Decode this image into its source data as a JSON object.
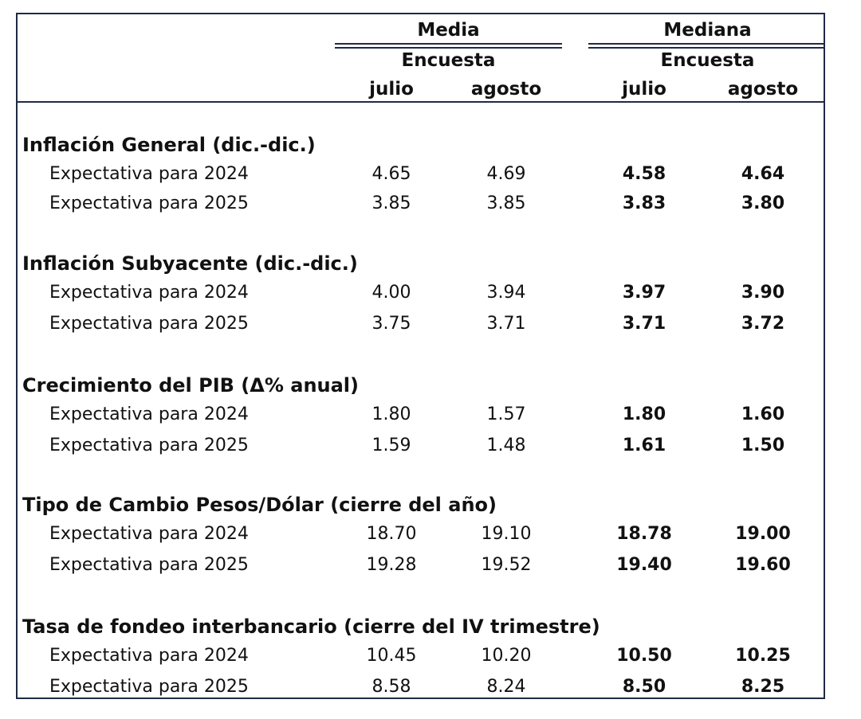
{
  "header": {
    "media_label": "Media",
    "mediana_label": "Mediana",
    "encuesta_label": "Encuesta",
    "month_1": "julio",
    "month_2": "agosto"
  },
  "sections": [
    {
      "title": "Inflación General (dic.-dic.)",
      "rows": [
        {
          "label": "Expectativa para 2024",
          "media_julio": "4.65",
          "media_agosto": "4.69",
          "mediana_julio": "4.58",
          "mediana_agosto": "4.64"
        },
        {
          "label": "Expectativa para 2025",
          "media_julio": "3.85",
          "media_agosto": "3.85",
          "mediana_julio": "3.83",
          "mediana_agosto": "3.80"
        }
      ]
    },
    {
      "title": "Inflación Subyacente (dic.-dic.)",
      "rows": [
        {
          "label": "Expectativa para 2024",
          "media_julio": "4.00",
          "media_agosto": "3.94",
          "mediana_julio": "3.97",
          "mediana_agosto": "3.90"
        },
        {
          "label": "Expectativa para 2025",
          "media_julio": "3.75",
          "media_agosto": "3.71",
          "mediana_julio": "3.71",
          "mediana_agosto": "3.72"
        }
      ]
    },
    {
      "title": "Crecimiento del PIB (Δ% anual)",
      "rows": [
        {
          "label": "Expectativa para 2024",
          "media_julio": "1.80",
          "media_agosto": "1.57",
          "mediana_julio": "1.80",
          "mediana_agosto": "1.60"
        },
        {
          "label": "Expectativa para 2025",
          "media_julio": "1.59",
          "media_agosto": "1.48",
          "mediana_julio": "1.61",
          "mediana_agosto": "1.50"
        }
      ]
    },
    {
      "title": "Tipo de Cambio Pesos/Dólar (cierre del año)",
      "rows": [
        {
          "label": "Expectativa para 2024",
          "media_julio": "18.70",
          "media_agosto": "19.10",
          "mediana_julio": "18.78",
          "mediana_agosto": "19.00"
        },
        {
          "label": "Expectativa para 2025",
          "media_julio": "19.28",
          "media_agosto": "19.52",
          "mediana_julio": "19.40",
          "mediana_agosto": "19.60"
        }
      ]
    },
    {
      "title": "Tasa de fondeo interbancario (cierre del IV trimestre)",
      "rows": [
        {
          "label": "Expectativa para 2024",
          "media_julio": "10.45",
          "media_agosto": "10.20",
          "mediana_julio": "10.50",
          "mediana_agosto": "10.25"
        },
        {
          "label": "Expectativa para 2025",
          "media_julio": "8.58",
          "media_agosto": "8.24",
          "mediana_julio": "8.50",
          "mediana_agosto": "8.25"
        }
      ]
    }
  ],
  "colors": {
    "border": "#1f2a44",
    "text": "#111111"
  }
}
